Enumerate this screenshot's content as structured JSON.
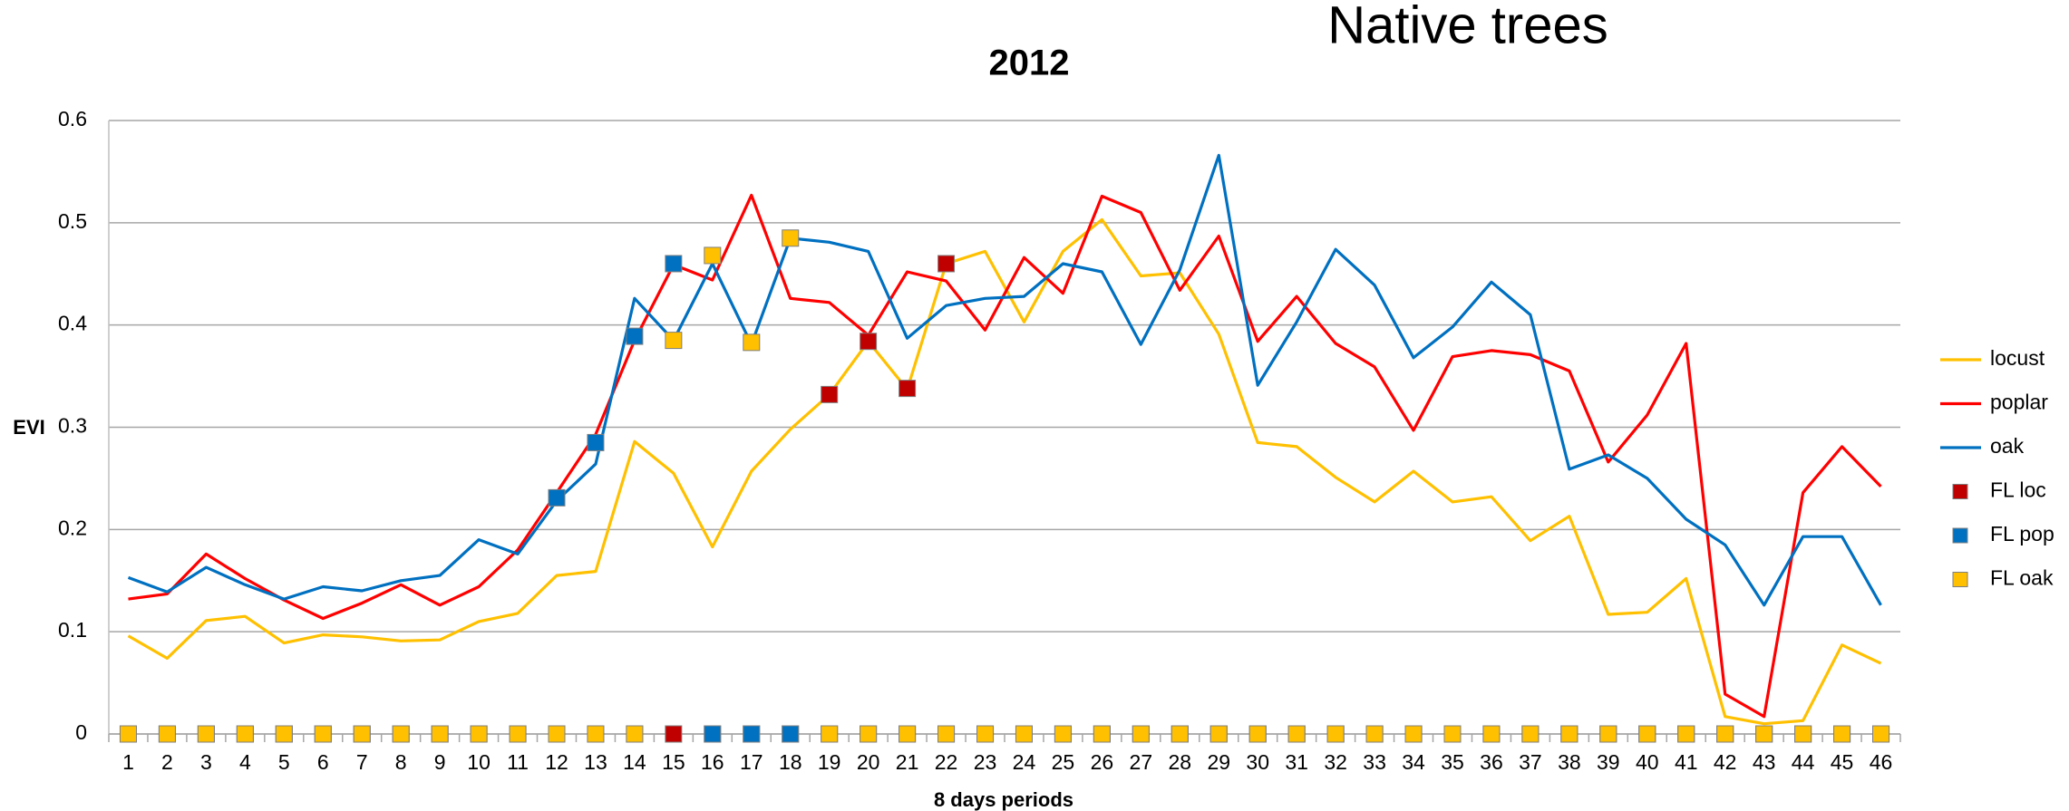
{
  "chart_data": {
    "type": "line",
    "title": "2012",
    "annotation": "Native trees",
    "x_label": "8 days periods",
    "y_label": "EVI",
    "categories": [
      "1",
      "2",
      "3",
      "4",
      "5",
      "6",
      "7",
      "8",
      "9",
      "10",
      "11",
      "12",
      "13",
      "14",
      "15",
      "16",
      "17",
      "18",
      "19",
      "20",
      "21",
      "22",
      "23",
      "24",
      "25",
      "26",
      "27",
      "28",
      "29",
      "30",
      "31",
      "32",
      "33",
      "34",
      "35",
      "36",
      "37",
      "38",
      "39",
      "40",
      "41",
      "42",
      "43",
      "44",
      "45",
      "46"
    ],
    "ylim": [
      0,
      0.6
    ],
    "yticks": [
      0,
      0.1,
      0.2,
      0.3,
      0.4,
      0.5,
      0.6
    ],
    "grid": true,
    "legend": "right",
    "series": [
      {
        "name": "locust",
        "style": "line",
        "color": "#FFC000",
        "values": [
          0.096,
          0.074,
          0.111,
          0.115,
          0.089,
          0.097,
          0.095,
          0.091,
          0.092,
          0.11,
          0.118,
          0.155,
          0.159,
          0.286,
          0.255,
          0.183,
          0.257,
          0.298,
          0.332,
          0.384,
          0.337,
          0.46,
          0.472,
          0.403,
          0.472,
          0.503,
          0.448,
          0.451,
          0.391,
          0.285,
          0.281,
          0.251,
          0.227,
          0.257,
          0.227,
          0.232,
          0.189,
          0.213,
          0.117,
          0.119,
          0.152,
          0.017,
          0.01,
          0.013,
          0.087,
          0.069
        ]
      },
      {
        "name": "poplar",
        "style": "line",
        "color": "#FF0000",
        "values": [
          0.132,
          0.137,
          0.176,
          0.152,
          0.131,
          0.113,
          0.128,
          0.146,
          0.126,
          0.144,
          0.18,
          0.236,
          0.293,
          0.385,
          0.459,
          0.444,
          0.527,
          0.426,
          0.422,
          0.39,
          0.452,
          0.443,
          0.395,
          0.466,
          0.431,
          0.526,
          0.51,
          0.434,
          0.487,
          0.384,
          0.428,
          0.382,
          0.359,
          0.297,
          0.369,
          0.375,
          0.371,
          0.355,
          0.266,
          0.312,
          0.382,
          0.039,
          0.017,
          0.236,
          0.281,
          0.242
        ]
      },
      {
        "name": "oak",
        "style": "line",
        "color": "#0070C0",
        "values": [
          0.153,
          0.139,
          0.163,
          0.146,
          0.132,
          0.144,
          0.14,
          0.15,
          0.155,
          0.19,
          0.176,
          0.228,
          0.264,
          0.426,
          0.385,
          0.46,
          0.381,
          0.485,
          0.481,
          0.472,
          0.387,
          0.419,
          0.426,
          0.428,
          0.46,
          0.452,
          0.381,
          0.454,
          0.566,
          0.341,
          0.403,
          0.474,
          0.439,
          0.368,
          0.398,
          0.442,
          0.41,
          0.259,
          0.273,
          0.25,
          0.21,
          0.185,
          0.126,
          0.193,
          0.193,
          0.126
        ]
      },
      {
        "name": "FL loc",
        "style": "marker",
        "color": "#C00000",
        "values": [
          0,
          0,
          0,
          0,
          0,
          0,
          0,
          0,
          0,
          0,
          0,
          0,
          0,
          0,
          0,
          0,
          0,
          0,
          0.332,
          0.384,
          0.338,
          0.46,
          0,
          0,
          0,
          0,
          0,
          0,
          0,
          0,
          0,
          0,
          0,
          0,
          0,
          0,
          0,
          0,
          0,
          0,
          0,
          0,
          0,
          0,
          0,
          0
        ]
      },
      {
        "name": "FL pop",
        "style": "marker",
        "color": "#0070C0",
        "values": [
          0,
          0,
          0,
          0,
          0,
          0,
          0,
          0,
          0,
          0,
          0,
          0.231,
          0.285,
          0.389,
          0.46,
          0,
          0,
          0,
          0,
          0,
          0,
          0,
          0,
          0,
          0,
          0,
          0,
          0,
          0,
          0,
          0,
          0,
          0,
          0,
          0,
          0,
          0,
          0,
          0,
          0,
          0,
          0,
          0,
          0,
          0,
          0
        ]
      },
      {
        "name": "FL oak",
        "style": "marker",
        "color": "#FFC000",
        "values": [
          0,
          0,
          0,
          0,
          0,
          0,
          0,
          0,
          0,
          0,
          0,
          0,
          0,
          0,
          0.385,
          0.468,
          0.383,
          0.485,
          0,
          0,
          0,
          0,
          0,
          0,
          0,
          0,
          0,
          0,
          0,
          0,
          0,
          0,
          0,
          0,
          0,
          0,
          0,
          0,
          0,
          0,
          0,
          0,
          0,
          0,
          0,
          0
        ]
      }
    ]
  }
}
